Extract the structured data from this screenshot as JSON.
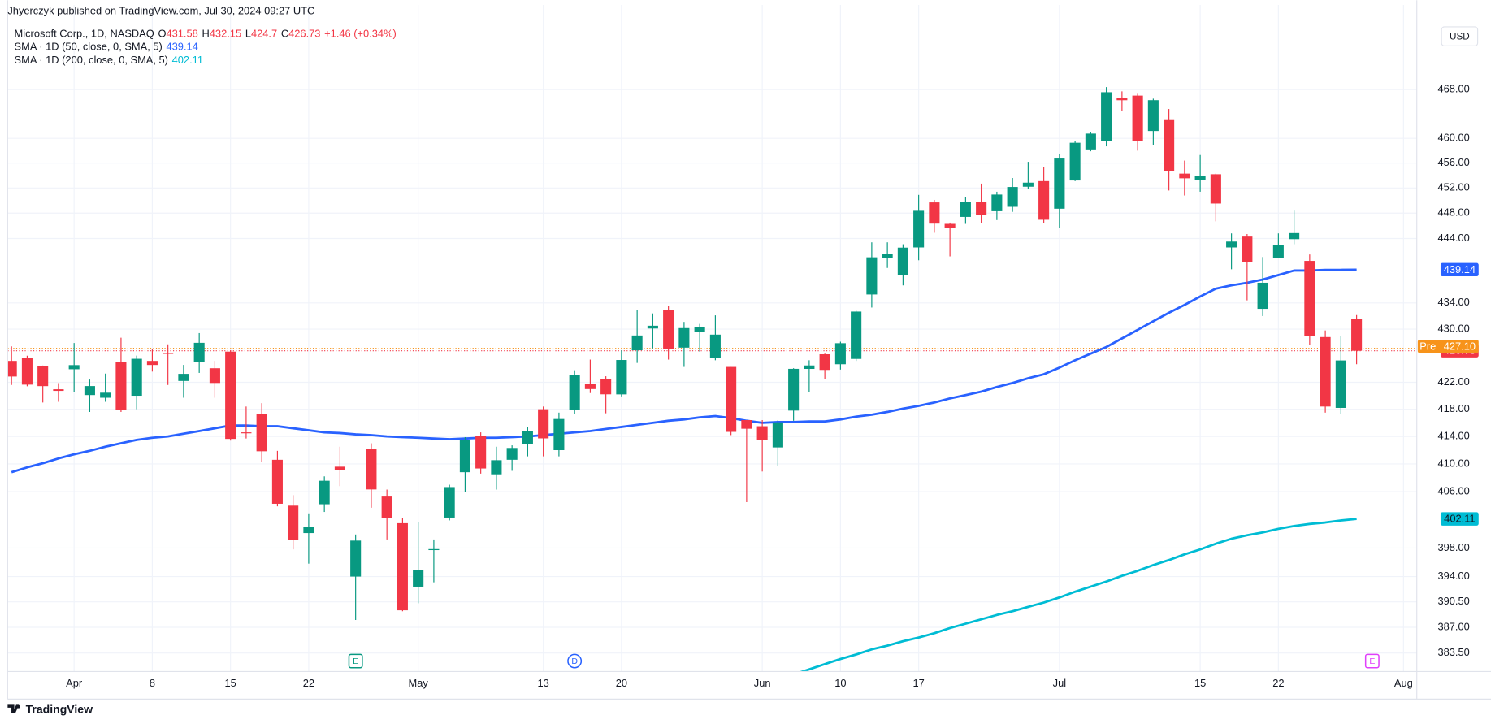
{
  "attribution": "Jhyerczyk published on TradingView.com, Jul 30, 2024 09:27 UTC",
  "currency": "USD",
  "brand": "TradingView",
  "chart_data": {
    "type": "candlestick",
    "title": "Microsoft Corp., 1D, NASDAQ",
    "ohlc_labels": [
      "O",
      "H",
      "L",
      "C"
    ],
    "change_label": "+1.46 (+0.34%)",
    "up_color": "#089981",
    "down_color": "#f23645",
    "log_scale": true,
    "grid": true,
    "xlim": [
      -0.25,
      89.85
    ],
    "ylim": [
      381.0,
      482.2
    ],
    "xticks": [
      {
        "value": 4,
        "label": "Apr"
      },
      {
        "value": 9,
        "label": "8"
      },
      {
        "value": 14,
        "label": "15"
      },
      {
        "value": 19,
        "label": "22"
      },
      {
        "value": 26,
        "label": "May"
      },
      {
        "value": 34,
        "label": "13"
      },
      {
        "value": 39,
        "label": "20"
      },
      {
        "value": 48,
        "label": "Jun"
      },
      {
        "value": 53,
        "label": "10"
      },
      {
        "value": 58,
        "label": "17"
      },
      {
        "value": 67,
        "label": "Jul"
      },
      {
        "value": 76,
        "label": "15"
      },
      {
        "value": 81,
        "label": "22"
      },
      {
        "value": 89,
        "label": "Aug"
      }
    ],
    "yticks": [
      {
        "value": 468,
        "label": "468.00"
      },
      {
        "value": 460,
        "label": "460.00"
      },
      {
        "value": 456,
        "label": "456.00"
      },
      {
        "value": 452,
        "label": "452.00"
      },
      {
        "value": 448,
        "label": "448.00"
      },
      {
        "value": 444,
        "label": "444.00"
      },
      {
        "value": 434,
        "label": "434.00"
      },
      {
        "value": 430,
        "label": "430.00"
      },
      {
        "value": 422,
        "label": "422.00"
      },
      {
        "value": 418,
        "label": "418.00"
      },
      {
        "value": 414,
        "label": "414.00"
      },
      {
        "value": 410,
        "label": "410.00"
      },
      {
        "value": 406,
        "label": "406.00"
      },
      {
        "value": 398,
        "label": "398.00"
      },
      {
        "value": 394,
        "label": "394.00"
      },
      {
        "value": 390.5,
        "label": "390.50"
      },
      {
        "value": 387,
        "label": "387.00"
      },
      {
        "value": 383.5,
        "label": "383.50"
      }
    ],
    "open": [
      425.2,
      425.6,
      424.4,
      420.96,
      423.95,
      420.1,
      419.7,
      424.99,
      420.0,
      425.2,
      426.4,
      422.2,
      424.99,
      424.1,
      426.6,
      414.6,
      417.3,
      410.6,
      404.0,
      400.1,
      404.2,
      409.6,
      394.0,
      412.2,
      405.3,
      401.5,
      392.6,
      397.7,
      402.3,
      408.8,
      414.1,
      408.5,
      410.6,
      412.9,
      418.0,
      412.0,
      417.9,
      421.8,
      422.5,
      420.2,
      426.8,
      430.1,
      432.97,
      427.2,
      429.6,
      425.7,
      424.3,
      416.4,
      415.5,
      412.4,
      417.8,
      424.0,
      426.2,
      424.7,
      425.5,
      435.3,
      440.9,
      438.3,
      442.6,
      449.7,
      446.3,
      447.4,
      449.8,
      448.3,
      449.0,
      452.2,
      453.1,
      448.7,
      453.2,
      458.2,
      459.6,
      466.6,
      467.0,
      461.2,
      462.98,
      454.3,
      453.3,
      454.2,
      442.6,
      444.3,
      433.1,
      441.0,
      443.9,
      440.5,
      428.8,
      418.2,
      431.58
    ],
    "high": [
      427.4,
      425.99,
      424.5,
      421.87,
      427.9,
      422.4,
      423.3,
      428.7,
      426.0,
      427.0,
      427.7,
      424.6,
      429.4,
      425.2,
      426.8,
      418.4,
      418.9,
      411.9,
      405.5,
      402.9,
      408.2,
      412.5,
      399.9,
      413.0,
      406.3,
      402.2,
      401.7,
      399.2,
      407.0,
      413.9,
      414.6,
      412.5,
      412.7,
      415.4,
      418.4,
      417.5,
      423.8,
      425.4,
      422.9,
      426.8,
      432.97,
      432.4,
      433.6,
      431.1,
      430.8,
      432.1,
      424.3,
      416.4,
      416.4,
      416.4,
      424.1,
      425.3,
      426.3,
      428.1,
      432.8,
      443.4,
      443.4,
      443.1,
      450.9,
      450.1,
      446.5,
      450.6,
      452.7,
      451.4,
      453.6,
      456.2,
      455.4,
      457.4,
      459.6,
      461.0,
      468.4,
      467.7,
      467.3,
      466.5,
      464.8,
      456.4,
      457.3,
      454.3,
      444.8,
      444.7,
      441.1,
      444.8,
      448.4,
      441.5,
      429.8,
      428.9,
      432.15
    ],
    "low": [
      421.6,
      421.4,
      419.0,
      419.1,
      420.5,
      417.6,
      419.1,
      417.6,
      418.0,
      423.6,
      421.6,
      419.7,
      423.4,
      419.7,
      413.4,
      413.7,
      410.3,
      403.9,
      397.8,
      395.8,
      403.1,
      406.8,
      388.0,
      403.7,
      399.2,
      389.2,
      390.3,
      393.2,
      401.9,
      406.0,
      408.6,
      406.3,
      409.0,
      411.1,
      411.1,
      411.1,
      417.3,
      420.4,
      417.4,
      419.9,
      424.9,
      427.1,
      425.4,
      424.3,
      426.6,
      425.3,
      414.2,
      404.5,
      408.9,
      409.7,
      416.3,
      420.6,
      422.5,
      423.9,
      425.2,
      433.3,
      439.4,
      436.7,
      440.6,
      444.9,
      441.2,
      446.3,
      446.4,
      446.9,
      448.2,
      451.8,
      446.4,
      445.7,
      453.1,
      457.9,
      458.7,
      464.5,
      458.0,
      458.9,
      451.6,
      450.8,
      451.4,
      446.7,
      439.2,
      434.4,
      432.0,
      441.0,
      443.1,
      427.6,
      417.5,
      417.3,
      424.7
    ],
    "close": [
      422.86,
      421.65,
      421.43,
      420.72,
      424.57,
      421.44,
      420.45,
      417.88,
      425.52,
      424.59,
      426.28,
      423.26,
      427.93,
      421.9,
      413.64,
      414.58,
      411.84,
      404.27,
      399.12,
      400.96,
      407.57,
      409.06,
      399.04,
      406.32,
      402.25,
      389.33,
      394.94,
      397.84,
      406.66,
      413.54,
      409.34,
      410.54,
      412.32,
      414.74,
      413.72,
      416.56,
      423.08,
      420.99,
      420.21,
      425.34,
      429.04,
      430.52,
      427.0,
      430.16,
      430.32,
      429.17,
      414.67,
      415.13,
      413.52,
      416.07,
      424.01,
      424.52,
      423.85,
      427.87,
      432.68,
      441.06,
      441.58,
      442.57,
      448.37,
      446.34,
      445.7,
      449.78,
      447.67,
      450.95,
      452.16,
      452.85,
      446.95,
      456.73,
      459.28,
      460.77,
      467.56,
      466.24,
      459.54,
      466.25,
      454.7,
      453.55,
      453.96,
      449.52,
      443.52,
      440.37,
      437.11,
      442.94,
      444.85,
      428.9,
      418.4,
      425.27,
      426.73
    ],
    "series": [
      {
        "name": "SMA · 1D (50, close, 0, SMA, 5)",
        "color": "#2962ff",
        "values": [
          408.8,
          409.5,
          410.1,
          410.8,
          411.4,
          411.9,
          412.5,
          413.0,
          413.5,
          413.8,
          414.0,
          414.4,
          414.8,
          415.2,
          415.6,
          415.6,
          415.5,
          415.5,
          415.2,
          414.9,
          414.6,
          414.5,
          414.3,
          414.2,
          414.0,
          413.9,
          413.8,
          413.7,
          413.6,
          413.7,
          413.8,
          413.8,
          413.9,
          414.0,
          414.2,
          414.4,
          414.6,
          414.8,
          415.1,
          415.4,
          415.7,
          416.0,
          416.3,
          416.5,
          416.8,
          417.0,
          416.7,
          416.3,
          416.0,
          416.1,
          416.1,
          416.2,
          416.2,
          416.5,
          416.9,
          417.2,
          417.6,
          418.1,
          418.5,
          419.0,
          419.6,
          420.1,
          420.6,
          421.3,
          421.9,
          422.6,
          423.2,
          424.2,
          425.3,
          426.3,
          427.3,
          428.6,
          429.9,
          431.2,
          432.5,
          433.7,
          435.0,
          436.2,
          436.7,
          437.1,
          437.6,
          438.3,
          439.0,
          439.0,
          439.1,
          439.1,
          439.14
        ]
      },
      {
        "name": "SMA · 1D (200, close, 0, SMA, 5)",
        "color": "#00bcd4",
        "values": [
          null,
          null,
          null,
          null,
          null,
          null,
          null,
          null,
          null,
          null,
          null,
          null,
          null,
          null,
          null,
          null,
          null,
          null,
          null,
          null,
          null,
          null,
          null,
          null,
          null,
          null,
          null,
          null,
          null,
          null,
          null,
          null,
          null,
          null,
          null,
          null,
          null,
          null,
          null,
          null,
          null,
          null,
          null,
          null,
          null,
          null,
          null,
          null,
          null,
          null,
          380.6,
          381.3,
          382.0,
          382.7,
          383.3,
          384.0,
          384.5,
          385.1,
          385.6,
          386.2,
          386.9,
          387.5,
          388.1,
          388.7,
          389.2,
          389.8,
          390.4,
          391.1,
          391.9,
          392.6,
          393.3,
          394.1,
          394.8,
          395.6,
          396.3,
          397.1,
          397.8,
          398.6,
          399.3,
          399.8,
          400.2,
          400.7,
          401.1,
          401.4,
          401.6,
          401.9,
          402.11
        ]
      }
    ],
    "pre_market": {
      "label": "Pre",
      "value": 427.1,
      "value_label": "427.10",
      "color": "#f7931a"
    },
    "events": [
      {
        "label": "E",
        "index": 22,
        "color": "#089981"
      },
      {
        "label": "D",
        "index": 36,
        "color": "#2962ff"
      },
      {
        "label": "E",
        "index": 87,
        "color": "#e040fb"
      }
    ]
  }
}
